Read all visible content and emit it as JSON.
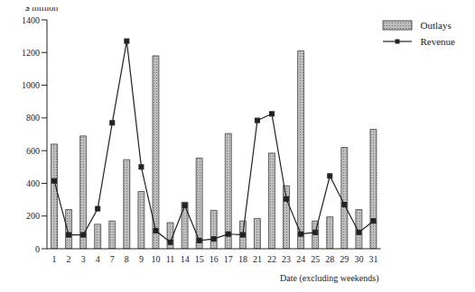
{
  "chart_data": {
    "type": "bar",
    "y_label": "$ million",
    "x_label": "Date (excluding weekends)",
    "categories": [
      "1",
      "2",
      "3",
      "4",
      "7",
      "8",
      "9",
      "10",
      "11",
      "14",
      "15",
      "16",
      "17",
      "18",
      "21",
      "22",
      "23",
      "24",
      "25",
      "28",
      "29",
      "30",
      "31"
    ],
    "series": [
      {
        "name": "Outlays",
        "type": "bar",
        "color": "#bdbdbd",
        "values": [
          640,
          240,
          690,
          150,
          170,
          545,
          350,
          1180,
          160,
          285,
          555,
          235,
          705,
          170,
          185,
          585,
          385,
          1210,
          170,
          195,
          620,
          240,
          730
        ]
      },
      {
        "name": "Revenue",
        "type": "line",
        "color": "#222222",
        "marker": "square",
        "values": [
          415,
          85,
          85,
          245,
          770,
          1270,
          500,
          110,
          40,
          265,
          50,
          60,
          90,
          85,
          785,
          825,
          305,
          90,
          100,
          445,
          270,
          100,
          170
        ]
      }
    ],
    "ylim": [
      0,
      1400
    ],
    "yticks": [
      0,
      200,
      400,
      600,
      800,
      1000,
      1200,
      1400
    ],
    "legend": "top-right",
    "grid": false
  }
}
